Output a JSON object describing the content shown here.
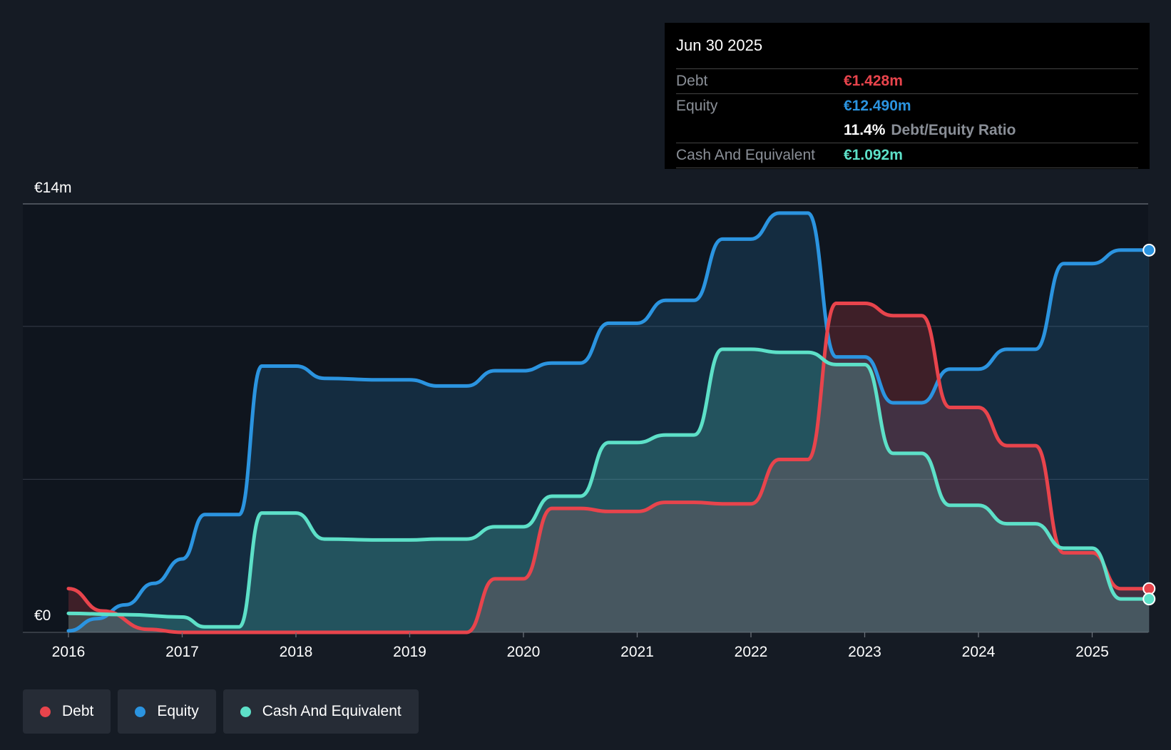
{
  "chart_data": {
    "type": "area",
    "y_unit_label_top": "€14m",
    "y_unit_label_bottom": "€0",
    "ylim": [
      0,
      14
    ],
    "xlim": [
      2016,
      2025.5
    ],
    "x_ticks": [
      "2016",
      "2017",
      "2018",
      "2019",
      "2020",
      "2021",
      "2022",
      "2023",
      "2024",
      "2025"
    ],
    "series": [
      {
        "name": "Equity",
        "color": "#2b94e0",
        "points": [
          [
            2016,
            0.05
          ],
          [
            2016.25,
            0.45
          ],
          [
            2016.5,
            0.9
          ],
          [
            2016.75,
            1.6
          ],
          [
            2017,
            2.4
          ],
          [
            2017.2,
            3.85
          ],
          [
            2017.5,
            3.85
          ],
          [
            2017.7,
            8.7
          ],
          [
            2018,
            8.7
          ],
          [
            2018.25,
            8.3
          ],
          [
            2018.75,
            8.25
          ],
          [
            2019,
            8.25
          ],
          [
            2019.25,
            8.05
          ],
          [
            2019.5,
            8.05
          ],
          [
            2019.75,
            8.55
          ],
          [
            2020,
            8.55
          ],
          [
            2020.25,
            8.8
          ],
          [
            2020.5,
            8.8
          ],
          [
            2020.75,
            10.1
          ],
          [
            2021,
            10.1
          ],
          [
            2021.25,
            10.85
          ],
          [
            2021.5,
            10.85
          ],
          [
            2021.75,
            12.85
          ],
          [
            2022,
            12.85
          ],
          [
            2022.25,
            13.7
          ],
          [
            2022.5,
            13.7
          ],
          [
            2022.75,
            9.0
          ],
          [
            2023,
            9.0
          ],
          [
            2023.25,
            7.5
          ],
          [
            2023.5,
            7.5
          ],
          [
            2023.75,
            8.6
          ],
          [
            2024,
            8.6
          ],
          [
            2024.25,
            9.25
          ],
          [
            2024.5,
            9.25
          ],
          [
            2024.75,
            12.05
          ],
          [
            2025,
            12.05
          ],
          [
            2025.25,
            12.49
          ],
          [
            2025.5,
            12.49
          ]
        ]
      },
      {
        "name": "Debt",
        "color": "#e8444c",
        "points": [
          [
            2016,
            1.43
          ],
          [
            2016.3,
            0.7
          ],
          [
            2016.7,
            0.1
          ],
          [
            2017,
            0.0
          ],
          [
            2019.5,
            0.0
          ],
          [
            2019.75,
            1.75
          ],
          [
            2020,
            1.75
          ],
          [
            2020.25,
            4.05
          ],
          [
            2020.5,
            4.05
          ],
          [
            2020.75,
            3.95
          ],
          [
            2021,
            3.95
          ],
          [
            2021.25,
            4.25
          ],
          [
            2021.5,
            4.25
          ],
          [
            2021.75,
            4.2
          ],
          [
            2022,
            4.2
          ],
          [
            2022.25,
            5.65
          ],
          [
            2022.5,
            5.65
          ],
          [
            2022.75,
            10.75
          ],
          [
            2023,
            10.75
          ],
          [
            2023.25,
            10.35
          ],
          [
            2023.5,
            10.35
          ],
          [
            2023.75,
            7.35
          ],
          [
            2024,
            7.35
          ],
          [
            2024.25,
            6.1
          ],
          [
            2024.5,
            6.1
          ],
          [
            2024.75,
            2.6
          ],
          [
            2025,
            2.6
          ],
          [
            2025.25,
            1.428
          ],
          [
            2025.5,
            1.428
          ]
        ]
      },
      {
        "name": "Cash And Equivalent",
        "color": "#5de0c8",
        "points": [
          [
            2016,
            0.62
          ],
          [
            2016.5,
            0.58
          ],
          [
            2017,
            0.5
          ],
          [
            2017.2,
            0.18
          ],
          [
            2017.5,
            0.18
          ],
          [
            2017.7,
            3.9
          ],
          [
            2018,
            3.9
          ],
          [
            2018.25,
            3.05
          ],
          [
            2018.75,
            3.02
          ],
          [
            2019,
            3.02
          ],
          [
            2019.25,
            3.05
          ],
          [
            2019.5,
            3.05
          ],
          [
            2019.75,
            3.45
          ],
          [
            2020,
            3.45
          ],
          [
            2020.25,
            4.45
          ],
          [
            2020.5,
            4.45
          ],
          [
            2020.75,
            6.2
          ],
          [
            2021,
            6.2
          ],
          [
            2021.25,
            6.45
          ],
          [
            2021.5,
            6.45
          ],
          [
            2021.75,
            9.25
          ],
          [
            2022,
            9.25
          ],
          [
            2022.25,
            9.15
          ],
          [
            2022.5,
            9.15
          ],
          [
            2022.75,
            8.75
          ],
          [
            2023,
            8.75
          ],
          [
            2023.25,
            5.85
          ],
          [
            2023.5,
            5.85
          ],
          [
            2023.75,
            4.15
          ],
          [
            2024,
            4.15
          ],
          [
            2024.25,
            3.55
          ],
          [
            2024.5,
            3.55
          ],
          [
            2024.75,
            2.75
          ],
          [
            2025,
            2.75
          ],
          [
            2025.25,
            1.092
          ],
          [
            2025.5,
            1.092
          ]
        ]
      }
    ]
  },
  "tooltip": {
    "date": "Jun 30 2025",
    "debt_label": "Debt",
    "debt_value": "€1.428m",
    "equity_label": "Equity",
    "equity_value": "€12.490m",
    "ratio_value": "11.4%",
    "ratio_label": "Debt/Equity Ratio",
    "cash_label": "Cash And Equivalent",
    "cash_value": "€1.092m"
  },
  "legend": {
    "debt": "Debt",
    "equity": "Equity",
    "cash": "Cash And Equivalent"
  },
  "colors": {
    "debt": "#e8444c",
    "equity": "#2b94e0",
    "cash": "#5de0c8",
    "background": "#151b24",
    "plot_background": "#0f151e"
  }
}
